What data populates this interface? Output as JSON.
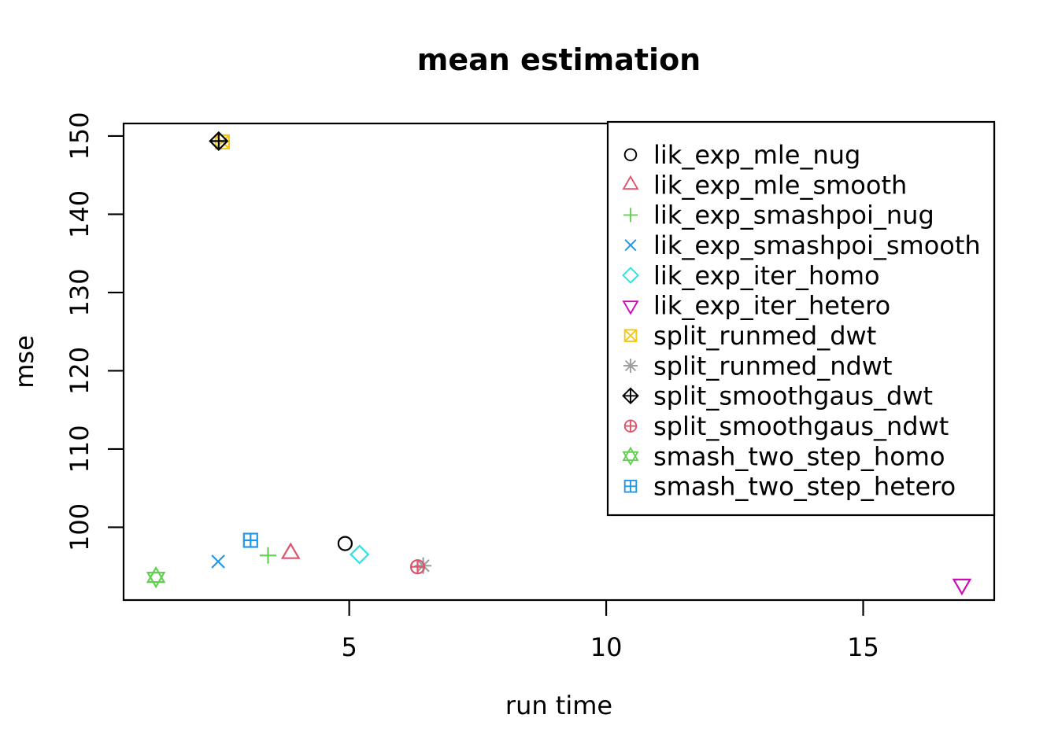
{
  "chart_data": {
    "type": "scatter",
    "title": "mean estimation",
    "xlabel": "run time",
    "ylabel": "mse",
    "xlim": [
      0.61,
      17.55
    ],
    "ylim": [
      90.7,
      151.6
    ],
    "xticks": [
      5,
      10,
      15
    ],
    "yticks": [
      100,
      110,
      120,
      130,
      140,
      150
    ],
    "grid": false,
    "legend_position": "top-right",
    "axis_color": "#000000",
    "series": [
      {
        "name": "lik_exp_mle_nug",
        "symbol": "circle",
        "color": "#000000",
        "points": [
          [
            4.92,
            97.93
          ]
        ]
      },
      {
        "name": "lik_exp_mle_smooth",
        "symbol": "triangle-up",
        "color": "#DF536B",
        "points": [
          [
            3.86,
            96.66
          ]
        ]
      },
      {
        "name": "lik_exp_smashpoi_nug",
        "symbol": "plus",
        "color": "#61D04F",
        "points": [
          [
            3.42,
            96.4
          ]
        ]
      },
      {
        "name": "lik_exp_smashpoi_smooth",
        "symbol": "x",
        "color": "#2297E6",
        "points": [
          [
            2.45,
            95.62
          ]
        ]
      },
      {
        "name": "lik_exp_iter_homo",
        "symbol": "diamond",
        "color": "#28E2E5",
        "points": [
          [
            5.2,
            96.53
          ]
        ]
      },
      {
        "name": "lik_exp_iter_hetero",
        "symbol": "triangle-down",
        "color": "#CD0BBC",
        "points": [
          [
            16.92,
            92.72
          ]
        ]
      },
      {
        "name": "split_runmed_dwt",
        "symbol": "square-x",
        "color": "#F5C710",
        "points": [
          [
            2.53,
            149.25
          ]
        ]
      },
      {
        "name": "split_runmed_ndwt",
        "symbol": "asterisk",
        "color": "#9E9E9E",
        "points": [
          [
            6.44,
            95.09
          ]
        ]
      },
      {
        "name": "split_smoothgaus_dwt",
        "symbol": "diamond-plus",
        "color": "#000000",
        "points": [
          [
            2.46,
            149.35
          ]
        ]
      },
      {
        "name": "split_smoothgaus_ndwt",
        "symbol": "circle-plus",
        "color": "#DF536B",
        "points": [
          [
            6.33,
            94.95
          ]
        ]
      },
      {
        "name": "smash_two_step_homo",
        "symbol": "star6",
        "color": "#61D04F",
        "points": [
          [
            1.24,
            93.6
          ]
        ]
      },
      {
        "name": "smash_two_step_hetero",
        "symbol": "square-plus",
        "color": "#2297E6",
        "points": [
          [
            3.08,
            98.34
          ]
        ]
      }
    ]
  }
}
